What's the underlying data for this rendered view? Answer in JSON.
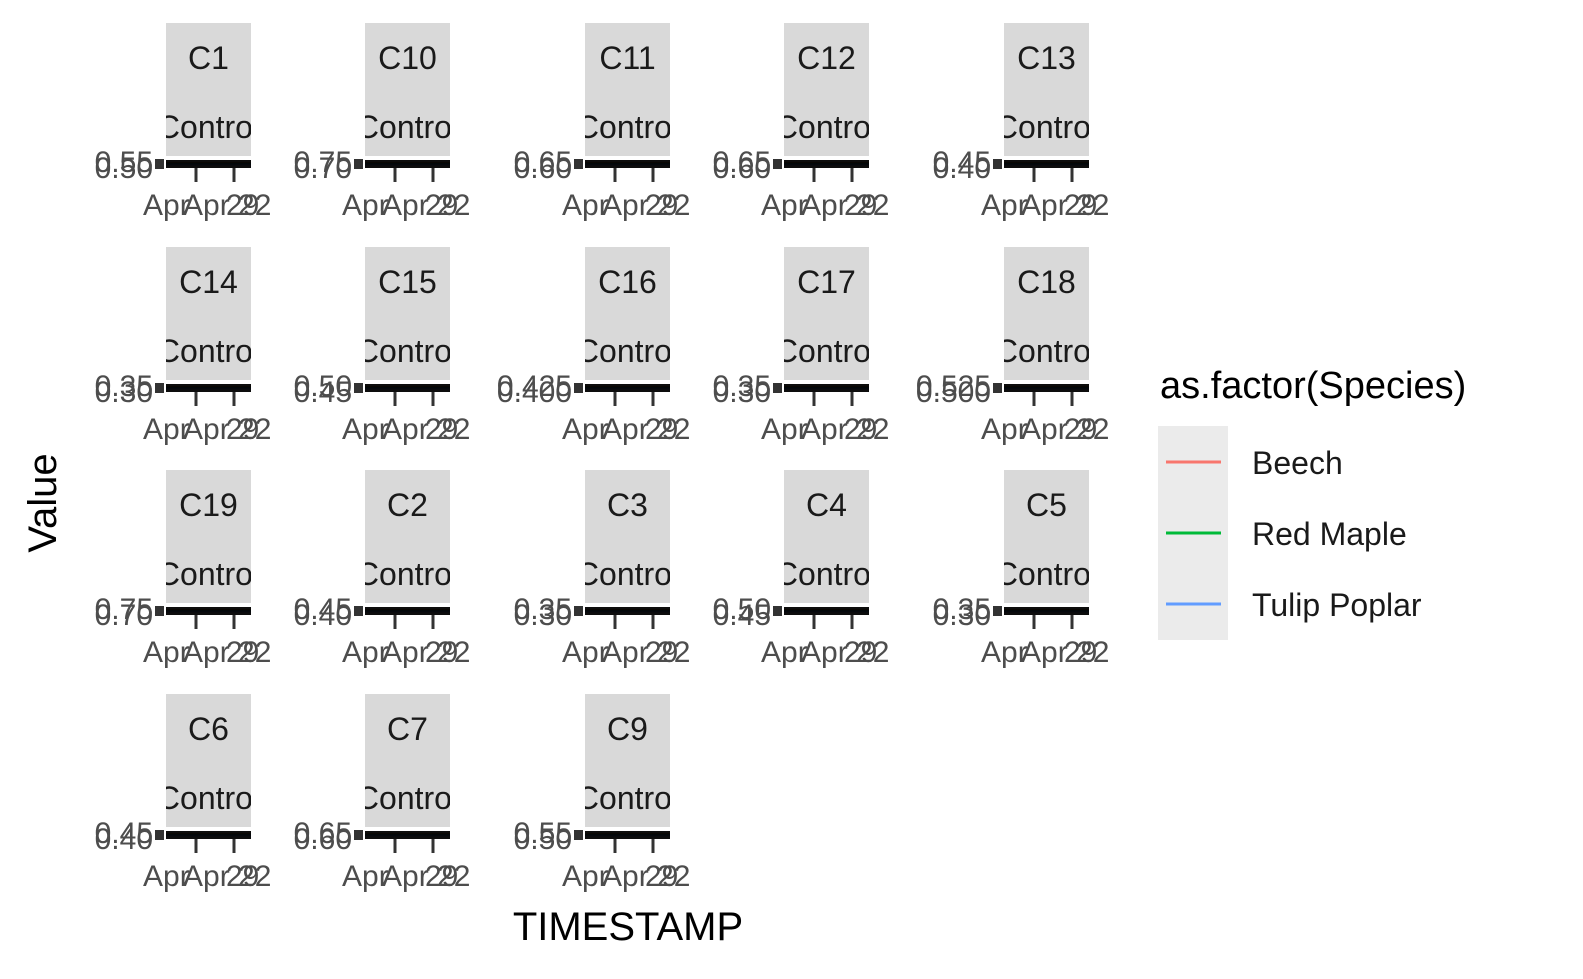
{
  "chart_data": {
    "type": "line",
    "xlabel": "TIMESTAMP",
    "ylabel": "Value",
    "x_tick_labels": [
      "Apr",
      "Apr 22",
      "29"
    ],
    "legend": {
      "title": "as.factor(Species)",
      "placement": "right",
      "entries": [
        {
          "name": "Beech",
          "color": "#F8766D"
        },
        {
          "name": "Red Maple",
          "color": "#00BA38"
        },
        {
          "name": "Tulip Poplar",
          "color": "#619CFF"
        }
      ]
    },
    "panels": [
      {
        "site": "C1",
        "treatment": "Control",
        "y_ticks": [
          "0.50",
          "0.55"
        ]
      },
      {
        "site": "C10",
        "treatment": "Control",
        "y_ticks": [
          "0.70",
          "0.75"
        ]
      },
      {
        "site": "C11",
        "treatment": "Control",
        "y_ticks": [
          "0.60",
          "0.65"
        ]
      },
      {
        "site": "C12",
        "treatment": "Control",
        "y_ticks": [
          "0.60",
          "0.65"
        ]
      },
      {
        "site": "C13",
        "treatment": "Control",
        "y_ticks": [
          "0.40",
          "0.45"
        ]
      },
      {
        "site": "C14",
        "treatment": "Control",
        "y_ticks": [
          "0.30",
          "0.35"
        ]
      },
      {
        "site": "C15",
        "treatment": "Control",
        "y_ticks": [
          "0.45",
          "0.50"
        ]
      },
      {
        "site": "C16",
        "treatment": "Control",
        "y_ticks": [
          "0.400",
          "0.425"
        ]
      },
      {
        "site": "C17",
        "treatment": "Control",
        "y_ticks": [
          "0.30",
          "0.35"
        ]
      },
      {
        "site": "C18",
        "treatment": "Control",
        "y_ticks": [
          "0.500",
          "0.525"
        ]
      },
      {
        "site": "C19",
        "treatment": "Control",
        "y_ticks": [
          "0.70",
          "0.75"
        ]
      },
      {
        "site": "C2",
        "treatment": "Control",
        "y_ticks": [
          "0.40",
          "0.45"
        ]
      },
      {
        "site": "C3",
        "treatment": "Control",
        "y_ticks": [
          "0.30",
          "0.35"
        ]
      },
      {
        "site": "C4",
        "treatment": "Control",
        "y_ticks": [
          "0.45",
          "0.50"
        ]
      },
      {
        "site": "C5",
        "treatment": "Control",
        "y_ticks": [
          "0.30",
          "0.35"
        ]
      },
      {
        "site": "C6",
        "treatment": "Control",
        "y_ticks": [
          "0.40",
          "0.45"
        ]
      },
      {
        "site": "C7",
        "treatment": "Control",
        "y_ticks": [
          "0.60",
          "0.65"
        ]
      },
      {
        "site": "C9",
        "treatment": "Control",
        "y_ticks": [
          "0.50",
          "0.55"
        ]
      }
    ]
  }
}
